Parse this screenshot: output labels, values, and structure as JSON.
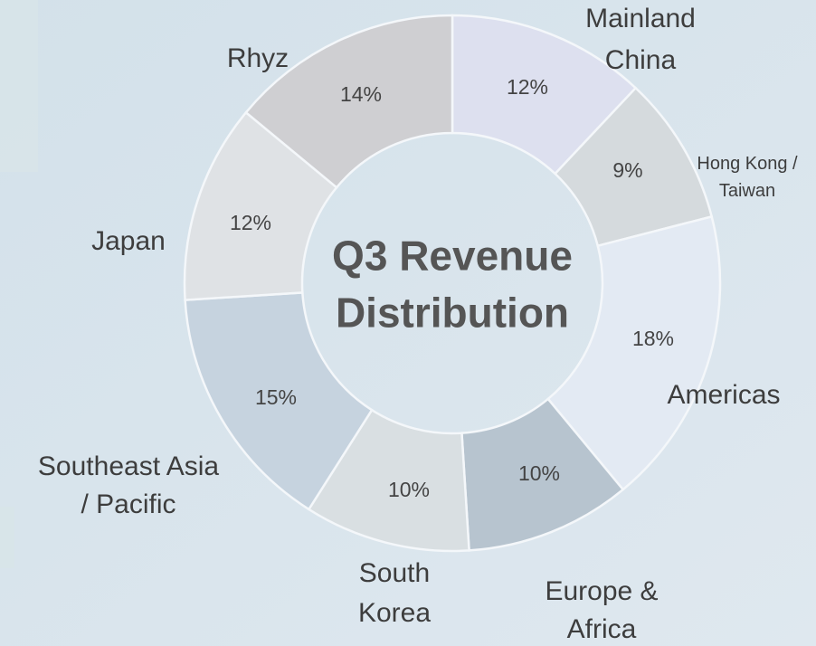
{
  "chart_data": {
    "type": "donut",
    "title": "Q3 Revenue\nDistribution",
    "categories": [
      "Mainland\nChina",
      "Hong Kong /\nTaiwan",
      "Americas",
      "Europe &\nAfrica",
      "South\nKorea",
      "Southeast Asia\n/ Pacific",
      "Japan",
      "Rhyz"
    ],
    "values": [
      12,
      9,
      18,
      10,
      10,
      15,
      12,
      14
    ],
    "value_labels": [
      "12%",
      "9%",
      "18%",
      "10%",
      "10%",
      "15%",
      "12%",
      "14%"
    ],
    "colors": [
      "#dde0ef",
      "#d5dadd",
      "#e3eaf3",
      "#b7c4cf",
      "#d9dfe2",
      "#c6d3df",
      "#dfe2e5",
      "#cfcfd2"
    ]
  }
}
